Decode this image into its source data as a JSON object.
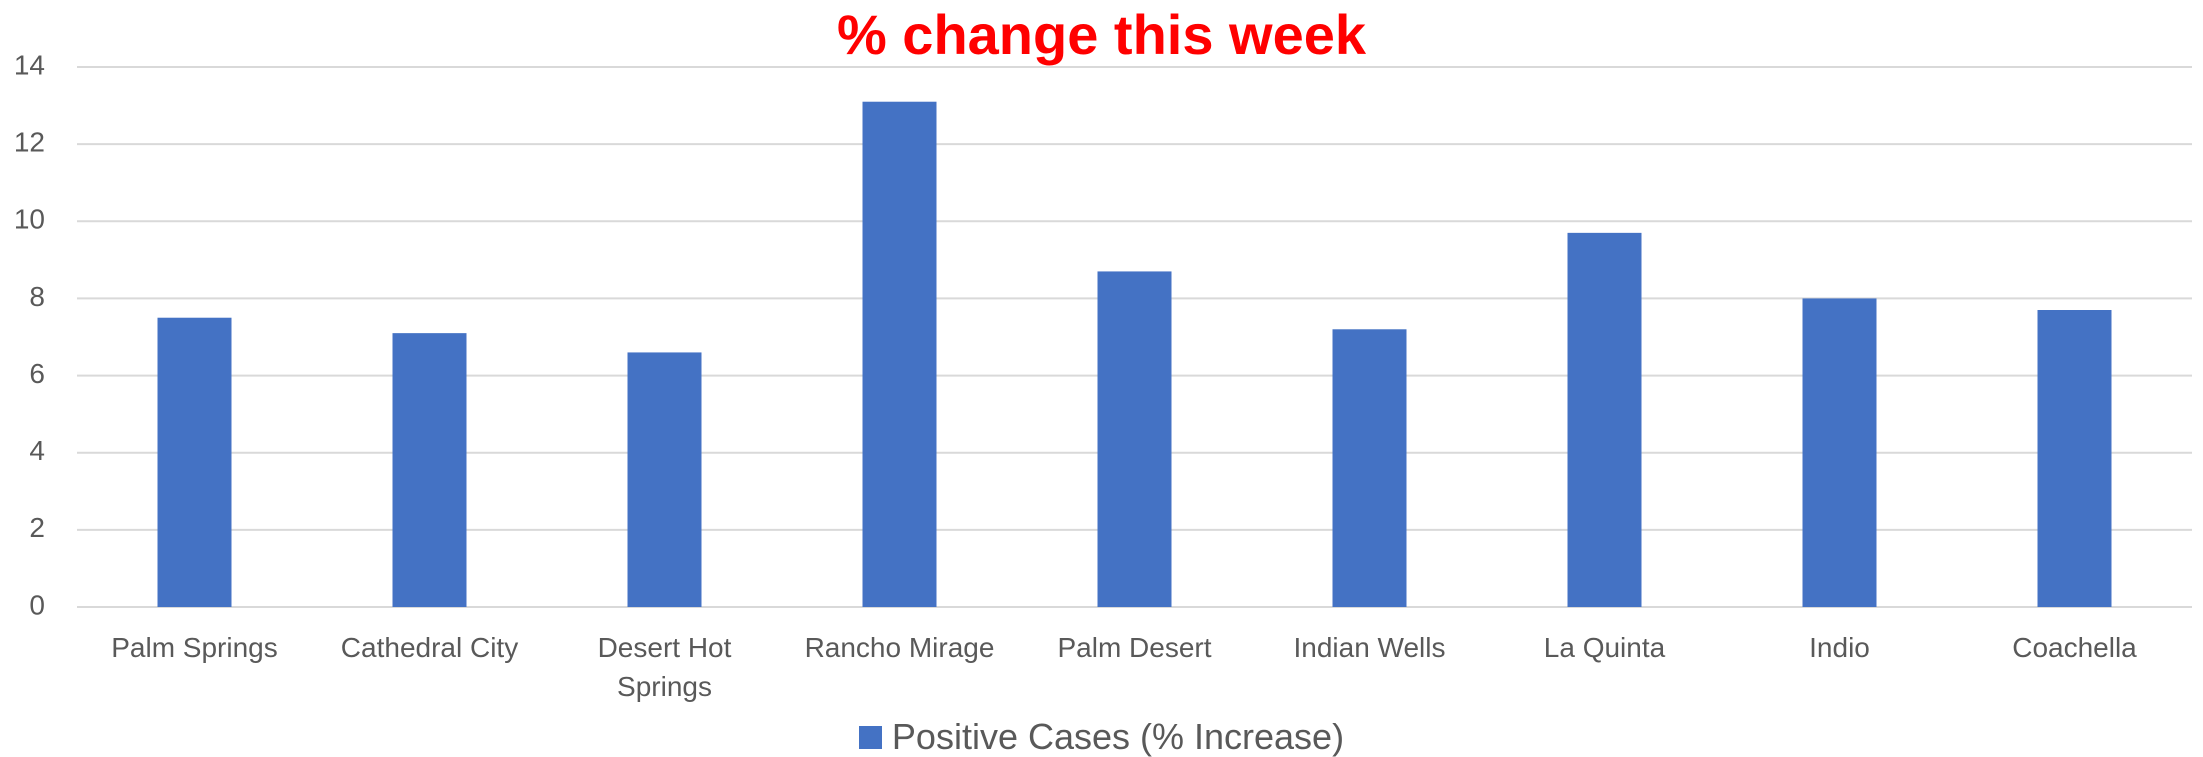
{
  "chart_data": {
    "type": "bar",
    "title": "% change this week",
    "categories": [
      "Palm Springs",
      "Cathedral City",
      "Desert Hot Springs",
      "Rancho Mirage",
      "Palm Desert",
      "Indian Wells",
      "La Quinta",
      "Indio",
      "Coachella"
    ],
    "series": [
      {
        "name": "Positive Cases (% Increase)",
        "color": "#4472c4",
        "values": [
          7.5,
          7.1,
          6.6,
          13.1,
          8.7,
          7.2,
          9.7,
          8.0,
          7.7
        ]
      }
    ],
    "ylim": [
      0,
      14
    ],
    "yticks": [
      0,
      2,
      4,
      6,
      8,
      10,
      12,
      14
    ],
    "grid": true,
    "legend": "bottom"
  }
}
